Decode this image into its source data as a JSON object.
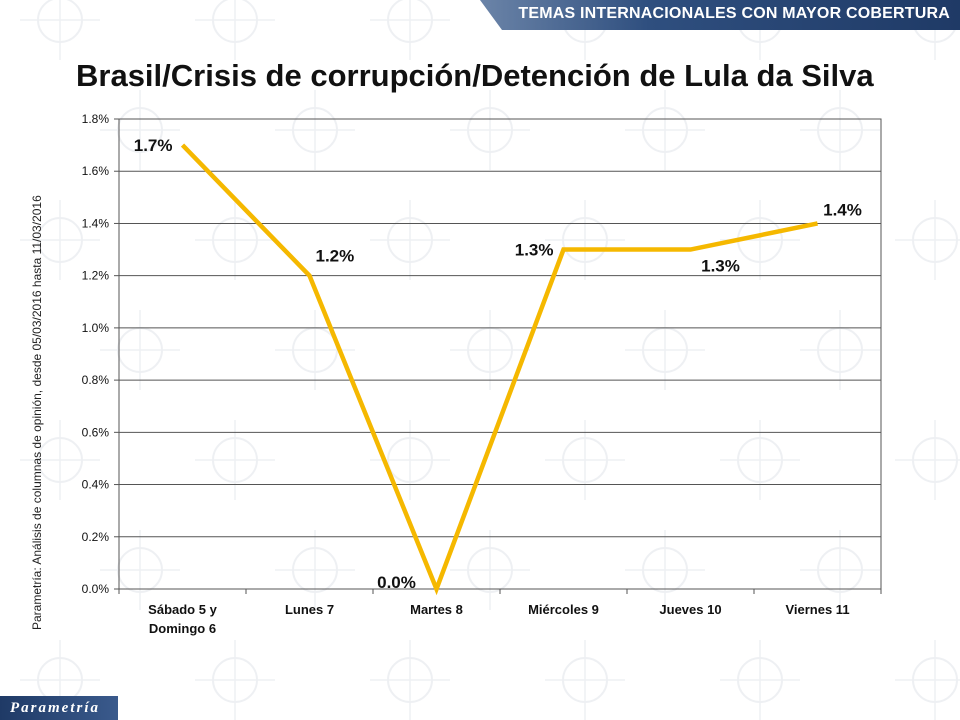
{
  "header": {
    "banner": "TEMAS INTERNACIONALES CON MAYOR COBERTURA"
  },
  "title": "Brasil/Crisis de corrupción/Detención de Lula da Silva",
  "source_note": "Parametría: Análisis de columnas de opinión, desde 05/03/2016 hasta 11/03/2016",
  "footer": {
    "logo": "Parametría"
  },
  "colors": {
    "line": "#f5b800",
    "banner": "#1f3a66",
    "grid": "#555555"
  },
  "chart_data": {
    "type": "line",
    "title": "Brasil/Crisis de corrupción/Detención de Lula da Silva",
    "xlabel": "",
    "ylabel": "",
    "categories": [
      [
        "Sábado 5 y",
        "Domingo 6"
      ],
      [
        "Lunes 7"
      ],
      [
        "Martes 8"
      ],
      [
        "Miércoles 9"
      ],
      [
        "Jueves 10"
      ],
      [
        "Viernes 11"
      ]
    ],
    "values": [
      1.7,
      1.2,
      0.0,
      1.3,
      1.3,
      1.4
    ],
    "data_labels": [
      "1.7%",
      "1.2%",
      "0.0%",
      "1.3%",
      "1.3%",
      "1.4%"
    ],
    "label_positions": [
      "left",
      "right",
      "below",
      "left",
      "below",
      "above"
    ],
    "ylim": [
      0,
      1.8
    ],
    "yticks": [
      "0.0%",
      "0.2%",
      "0.4%",
      "0.6%",
      "0.8%",
      "1.0%",
      "1.2%",
      "1.4%",
      "1.6%",
      "1.8%"
    ],
    "grid": true,
    "legend": "none"
  }
}
